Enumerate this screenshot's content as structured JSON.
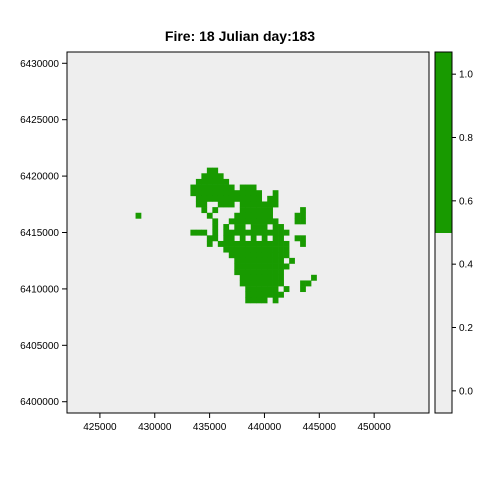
{
  "chart_data": {
    "type": "heatmap",
    "title": "Fire: 18   Julian day:183",
    "xlabel": "",
    "ylabel": "",
    "xlim": [
      422000,
      455000
    ],
    "ylim": [
      6399000,
      6431000
    ],
    "x_ticks": [
      425000,
      430000,
      435000,
      440000,
      445000,
      450000
    ],
    "y_ticks": [
      6400000,
      6405000,
      6410000,
      6415000,
      6420000,
      6425000,
      6430000
    ],
    "x_tick_labels": [
      "425000",
      "430000",
      "435000",
      "440000",
      "445000",
      "450000"
    ],
    "y_tick_labels": [
      "6400000",
      "6405000",
      "6410000",
      "6415000",
      "6420000",
      "6425000",
      "6430000"
    ],
    "cell_size": 500,
    "background_value": 0,
    "burned_value": 1,
    "colors": {
      "background": "#eeeeee",
      "burned": "#189a00",
      "axis": "#000000"
    },
    "burned_cells": [
      [
        435000,
        6420500
      ],
      [
        435500,
        6420500
      ],
      [
        434500,
        6420000
      ],
      [
        435000,
        6420000
      ],
      [
        435500,
        6420000
      ],
      [
        436000,
        6420000
      ],
      [
        434000,
        6419500
      ],
      [
        434500,
        6419500
      ],
      [
        435000,
        6419500
      ],
      [
        435500,
        6419500
      ],
      [
        436000,
        6419500
      ],
      [
        436500,
        6419500
      ],
      [
        433500,
        6419000
      ],
      [
        434000,
        6419000
      ],
      [
        434500,
        6419000
      ],
      [
        435000,
        6419000
      ],
      [
        435500,
        6419000
      ],
      [
        436000,
        6419000
      ],
      [
        436500,
        6419000
      ],
      [
        437000,
        6419000
      ],
      [
        438000,
        6419000
      ],
      [
        438500,
        6419000
      ],
      [
        439000,
        6419000
      ],
      [
        433500,
        6418500
      ],
      [
        434000,
        6418500
      ],
      [
        434500,
        6418500
      ],
      [
        435000,
        6418500
      ],
      [
        435500,
        6418500
      ],
      [
        436000,
        6418500
      ],
      [
        436500,
        6418500
      ],
      [
        437000,
        6418500
      ],
      [
        437500,
        6418500
      ],
      [
        438000,
        6418500
      ],
      [
        438500,
        6418500
      ],
      [
        439000,
        6418500
      ],
      [
        439500,
        6418500
      ],
      [
        441000,
        6418500
      ],
      [
        434000,
        6418000
      ],
      [
        434500,
        6418000
      ],
      [
        435000,
        6418000
      ],
      [
        435500,
        6418000
      ],
      [
        436000,
        6418000
      ],
      [
        436500,
        6418000
      ],
      [
        437000,
        6418000
      ],
      [
        437500,
        6418000
      ],
      [
        438000,
        6418000
      ],
      [
        438500,
        6418000
      ],
      [
        439000,
        6418000
      ],
      [
        439500,
        6418000
      ],
      [
        440500,
        6418000
      ],
      [
        441000,
        6418000
      ],
      [
        434000,
        6417500
      ],
      [
        434500,
        6417500
      ],
      [
        436000,
        6417500
      ],
      [
        436500,
        6417500
      ],
      [
        437000,
        6417500
      ],
      [
        438000,
        6417500
      ],
      [
        438500,
        6417500
      ],
      [
        439000,
        6417500
      ],
      [
        439500,
        6417500
      ],
      [
        440000,
        6417500
      ],
      [
        440500,
        6417500
      ],
      [
        441000,
        6417500
      ],
      [
        428500,
        6416500
      ],
      [
        434500,
        6417000
      ],
      [
        435500,
        6417000
      ],
      [
        438000,
        6417000
      ],
      [
        438500,
        6417000
      ],
      [
        439000,
        6417000
      ],
      [
        439500,
        6417000
      ],
      [
        440000,
        6417000
      ],
      [
        440500,
        6417000
      ],
      [
        443500,
        6417000
      ],
      [
        435000,
        6416500
      ],
      [
        437500,
        6416500
      ],
      [
        438000,
        6416500
      ],
      [
        438500,
        6416500
      ],
      [
        439000,
        6416500
      ],
      [
        439500,
        6416500
      ],
      [
        440000,
        6416500
      ],
      [
        440500,
        6416500
      ],
      [
        443000,
        6416500
      ],
      [
        443500,
        6416500
      ],
      [
        435500,
        6416000
      ],
      [
        437000,
        6416000
      ],
      [
        437500,
        6416000
      ],
      [
        438000,
        6416000
      ],
      [
        438500,
        6416000
      ],
      [
        439000,
        6416000
      ],
      [
        439500,
        6416000
      ],
      [
        440000,
        6416000
      ],
      [
        440500,
        6416000
      ],
      [
        441000,
        6416000
      ],
      [
        443000,
        6416000
      ],
      [
        443500,
        6416000
      ],
      [
        435500,
        6415500
      ],
      [
        436500,
        6415500
      ],
      [
        437500,
        6415500
      ],
      [
        438000,
        6415500
      ],
      [
        439000,
        6415500
      ],
      [
        439500,
        6415500
      ],
      [
        440000,
        6415500
      ],
      [
        441000,
        6415500
      ],
      [
        441500,
        6415500
      ],
      [
        433500,
        6415000
      ],
      [
        434000,
        6415000
      ],
      [
        434500,
        6415000
      ],
      [
        435500,
        6415000
      ],
      [
        436500,
        6415000
      ],
      [
        437000,
        6415000
      ],
      [
        437500,
        6415000
      ],
      [
        438000,
        6415000
      ],
      [
        438500,
        6415000
      ],
      [
        439000,
        6415000
      ],
      [
        439500,
        6415000
      ],
      [
        440000,
        6415000
      ],
      [
        440500,
        6415000
      ],
      [
        441000,
        6415000
      ],
      [
        441500,
        6415000
      ],
      [
        442000,
        6415000
      ],
      [
        435000,
        6414500
      ],
      [
        435500,
        6414500
      ],
      [
        436500,
        6414500
      ],
      [
        437000,
        6414500
      ],
      [
        438000,
        6414500
      ],
      [
        439000,
        6414500
      ],
      [
        440000,
        6414500
      ],
      [
        441000,
        6414500
      ],
      [
        441500,
        6414500
      ],
      [
        443000,
        6414500
      ],
      [
        443500,
        6414500
      ],
      [
        435000,
        6414000
      ],
      [
        436000,
        6414000
      ],
      [
        436500,
        6414000
      ],
      [
        437000,
        6414000
      ],
      [
        437500,
        6414000
      ],
      [
        438000,
        6414000
      ],
      [
        438500,
        6414000
      ],
      [
        439000,
        6414000
      ],
      [
        439500,
        6414000
      ],
      [
        440000,
        6414000
      ],
      [
        440500,
        6414000
      ],
      [
        441000,
        6414000
      ],
      [
        441500,
        6414000
      ],
      [
        442000,
        6414000
      ],
      [
        443500,
        6414000
      ],
      [
        436500,
        6413500
      ],
      [
        437000,
        6413500
      ],
      [
        437500,
        6413500
      ],
      [
        438000,
        6413500
      ],
      [
        438500,
        6413500
      ],
      [
        439000,
        6413500
      ],
      [
        439500,
        6413500
      ],
      [
        440000,
        6413500
      ],
      [
        440500,
        6413500
      ],
      [
        441000,
        6413500
      ],
      [
        441500,
        6413500
      ],
      [
        442000,
        6413500
      ],
      [
        437000,
        6413000
      ],
      [
        437500,
        6413000
      ],
      [
        438000,
        6413000
      ],
      [
        438500,
        6413000
      ],
      [
        439000,
        6413000
      ],
      [
        439500,
        6413000
      ],
      [
        440000,
        6413000
      ],
      [
        440500,
        6413000
      ],
      [
        441000,
        6413000
      ],
      [
        441500,
        6413000
      ],
      [
        442000,
        6413000
      ],
      [
        437500,
        6412500
      ],
      [
        438000,
        6412500
      ],
      [
        438500,
        6412500
      ],
      [
        439000,
        6412500
      ],
      [
        439500,
        6412500
      ],
      [
        440000,
        6412500
      ],
      [
        440500,
        6412500
      ],
      [
        441000,
        6412500
      ],
      [
        441500,
        6412500
      ],
      [
        442500,
        6412500
      ],
      [
        437500,
        6412000
      ],
      [
        438000,
        6412000
      ],
      [
        438500,
        6412000
      ],
      [
        439000,
        6412000
      ],
      [
        439500,
        6412000
      ],
      [
        440000,
        6412000
      ],
      [
        440500,
        6412000
      ],
      [
        441000,
        6412000
      ],
      [
        441500,
        6412000
      ],
      [
        442000,
        6412000
      ],
      [
        437500,
        6411500
      ],
      [
        438000,
        6411500
      ],
      [
        438500,
        6411500
      ],
      [
        439000,
        6411500
      ],
      [
        439500,
        6411500
      ],
      [
        440000,
        6411500
      ],
      [
        440500,
        6411500
      ],
      [
        441000,
        6411500
      ],
      [
        441500,
        6411500
      ],
      [
        438000,
        6411000
      ],
      [
        438500,
        6411000
      ],
      [
        439000,
        6411000
      ],
      [
        439500,
        6411000
      ],
      [
        440000,
        6411000
      ],
      [
        440500,
        6411000
      ],
      [
        441000,
        6411000
      ],
      [
        441500,
        6411000
      ],
      [
        444500,
        6411000
      ],
      [
        438000,
        6410500
      ],
      [
        438500,
        6410500
      ],
      [
        439000,
        6410500
      ],
      [
        439500,
        6410500
      ],
      [
        440000,
        6410500
      ],
      [
        440500,
        6410500
      ],
      [
        441000,
        6410500
      ],
      [
        441500,
        6410500
      ],
      [
        443500,
        6410500
      ],
      [
        444000,
        6410500
      ],
      [
        438500,
        6410000
      ],
      [
        439000,
        6410000
      ],
      [
        439500,
        6410000
      ],
      [
        440000,
        6410000
      ],
      [
        440500,
        6410000
      ],
      [
        441000,
        6410000
      ],
      [
        442000,
        6410000
      ],
      [
        443500,
        6410000
      ],
      [
        438500,
        6409500
      ],
      [
        439000,
        6409500
      ],
      [
        439500,
        6409500
      ],
      [
        440000,
        6409500
      ],
      [
        440500,
        6409500
      ],
      [
        441000,
        6409500
      ],
      [
        441500,
        6409500
      ],
      [
        438500,
        6409000
      ],
      [
        439000,
        6409000
      ],
      [
        439500,
        6409000
      ],
      [
        440000,
        6409000
      ],
      [
        441000,
        6409000
      ]
    ],
    "legend": {
      "placement": "right",
      "range": [
        -0.07,
        1.07
      ],
      "break": 0.5,
      "ticks": [
        0.0,
        0.2,
        0.4,
        0.6,
        0.8,
        1.0
      ],
      "tick_labels": [
        "0.0",
        "0.2",
        "0.4",
        "0.6",
        "0.8",
        "1.0"
      ]
    },
    "grid": false
  }
}
